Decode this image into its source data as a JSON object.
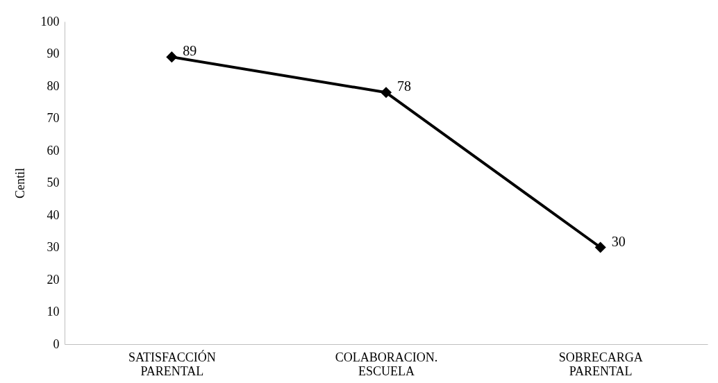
{
  "chart_data": {
    "type": "line",
    "ylabel": "Centil",
    "categories": [
      "SATISFACCIÓN PARENTAL",
      "COLABORACION. ESCUELA",
      "SOBRECARGA PARENTAL"
    ],
    "series": [
      {
        "color": "#000000",
        "values": [
          89,
          78,
          30
        ]
      }
    ],
    "ylim": [
      0,
      100
    ],
    "yticks": [
      0,
      10,
      20,
      30,
      40,
      50,
      60,
      70,
      80,
      90,
      100
    ],
    "grid": false,
    "legend": false,
    "marker": "diamond",
    "data_labels": true
  }
}
